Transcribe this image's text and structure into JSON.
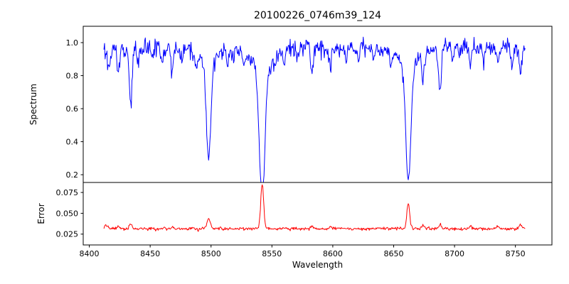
{
  "chart_data": {
    "type": "line",
    "title": "20100226_0746m39_124",
    "xlabel": "Wavelength",
    "xlim": [
      8395,
      8780
    ],
    "xticks": [
      8400,
      8450,
      8500,
      8550,
      8600,
      8650,
      8700,
      8750
    ],
    "xticklabels": [
      "8400",
      "8450",
      "8500",
      "8550",
      "8600",
      "8650",
      "8700",
      "8750"
    ],
    "x_start": 8412,
    "x_end": 8758,
    "x_step": 0.5,
    "noise_seed": 7,
    "grid": false,
    "legend": "none",
    "panels": [
      {
        "name": "spectrum",
        "ylabel": "Spectrum",
        "ylim": [
          0.153,
          1.099
        ],
        "yticks": [
          0.2,
          0.4,
          0.6,
          0.8,
          1.0
        ],
        "yticklabels": [
          "0.2",
          "0.4",
          "0.6",
          "0.8",
          "1.0"
        ],
        "line_color": "#0000ff",
        "line_width": 1,
        "continuum": 0.97,
        "noise_sigma": 0.026,
        "absorption_lines": [
          {
            "center": 8416,
            "depth": 0.13,
            "sigma": 1.4
          },
          {
            "center": 8424,
            "depth": 0.16,
            "sigma": 1.0
          },
          {
            "center": 8429,
            "depth": 0.08,
            "sigma": 0.9
          },
          {
            "center": 8434,
            "depth": 0.34,
            "sigma": 1.2
          },
          {
            "center": 8440,
            "depth": 0.1,
            "sigma": 0.9
          },
          {
            "center": 8452,
            "depth": 0.07,
            "sigma": 0.9
          },
          {
            "center": 8460,
            "depth": 0.08,
            "sigma": 0.9
          },
          {
            "center": 8468,
            "depth": 0.14,
            "sigma": 1.0
          },
          {
            "center": 8476,
            "depth": 0.07,
            "sigma": 0.9
          },
          {
            "center": 8488,
            "depth": 0.09,
            "sigma": 0.9
          },
          {
            "center": 8498,
            "depth": 0.585,
            "sigma": 1.9
          },
          {
            "center": 8514,
            "depth": 0.1,
            "sigma": 0.9
          },
          {
            "center": 8518,
            "depth": 0.08,
            "sigma": 0.9
          },
          {
            "center": 8527,
            "depth": 0.07,
            "sigma": 0.9
          },
          {
            "center": 8542,
            "depth": 0.8,
            "sigma": 2.3
          },
          {
            "center": 8552,
            "depth": 0.06,
            "sigma": 0.9
          },
          {
            "center": 8560,
            "depth": 0.07,
            "sigma": 0.9
          },
          {
            "center": 8571,
            "depth": 0.06,
            "sigma": 0.9
          },
          {
            "center": 8583,
            "depth": 0.17,
            "sigma": 1.0
          },
          {
            "center": 8598,
            "depth": 0.13,
            "sigma": 1.0
          },
          {
            "center": 8611,
            "depth": 0.09,
            "sigma": 0.9
          },
          {
            "center": 8621,
            "depth": 0.09,
            "sigma": 0.9
          },
          {
            "center": 8634,
            "depth": 0.07,
            "sigma": 0.9
          },
          {
            "center": 8648,
            "depth": 0.09,
            "sigma": 0.9
          },
          {
            "center": 8662,
            "depth": 0.705,
            "sigma": 2.1
          },
          {
            "center": 8674,
            "depth": 0.16,
            "sigma": 1.0
          },
          {
            "center": 8688,
            "depth": 0.26,
            "sigma": 1.2
          },
          {
            "center": 8699,
            "depth": 0.07,
            "sigma": 0.9
          },
          {
            "center": 8713,
            "depth": 0.11,
            "sigma": 0.9
          },
          {
            "center": 8724,
            "depth": 0.07,
            "sigma": 0.9
          },
          {
            "center": 8736,
            "depth": 0.1,
            "sigma": 0.9
          },
          {
            "center": 8747,
            "depth": 0.12,
            "sigma": 1.0
          },
          {
            "center": 8754,
            "depth": 0.15,
            "sigma": 1.0
          }
        ]
      },
      {
        "name": "error",
        "ylabel": "Error",
        "ylim": [
          0.012,
          0.087
        ],
        "yticks": [
          0.025,
          0.05,
          0.075
        ],
        "yticklabels": [
          "0.025",
          "0.050",
          "0.075"
        ],
        "line_color": "#ff0000",
        "line_width": 1,
        "baseline": 0.0315,
        "noise_sigma": 0.0009,
        "peaks": [
          {
            "center": 8414,
            "amplitude": 0.004,
            "sigma": 1.5
          },
          {
            "center": 8424,
            "amplitude": 0.004,
            "sigma": 1.1
          },
          {
            "center": 8434,
            "amplitude": 0.0055,
            "sigma": 1.1
          },
          {
            "center": 8468,
            "amplitude": 0.003,
            "sigma": 1.0
          },
          {
            "center": 8498,
            "amplitude": 0.011,
            "sigma": 1.5
          },
          {
            "center": 8542,
            "amplitude": 0.0545,
            "sigma": 1.2
          },
          {
            "center": 8583,
            "amplitude": 0.003,
            "sigma": 1.0
          },
          {
            "center": 8598,
            "amplitude": 0.0025,
            "sigma": 1.0
          },
          {
            "center": 8662,
            "amplitude": 0.0305,
            "sigma": 1.2
          },
          {
            "center": 8674,
            "amplitude": 0.003,
            "sigma": 1.0
          },
          {
            "center": 8688,
            "amplitude": 0.004,
            "sigma": 1.1
          },
          {
            "center": 8713,
            "amplitude": 0.0025,
            "sigma": 1.0
          },
          {
            "center": 8736,
            "amplitude": 0.0025,
            "sigma": 1.0
          },
          {
            "center": 8754,
            "amplitude": 0.005,
            "sigma": 1.2
          }
        ]
      }
    ]
  }
}
